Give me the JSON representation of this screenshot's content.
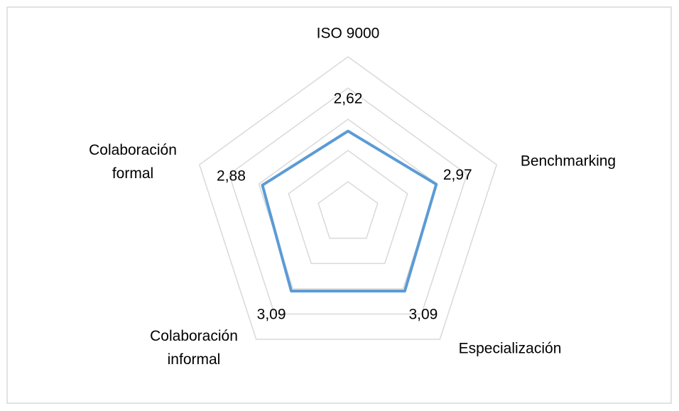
{
  "chart_data": {
    "type": "radar",
    "categories": [
      "ISO 9000",
      "Benchmarking",
      "Especialización",
      "Colaboración informal",
      "Colaboración formal"
    ],
    "series": [
      {
        "color": "#5b9bd5",
        "values": [
          2.62,
          2.97,
          3.09,
          3.09,
          2.88
        ],
        "value_labels": [
          "2,62",
          "2,97",
          "3,09",
          "3,09",
          "2,88"
        ]
      }
    ],
    "ylim": [
      0,
      5
    ],
    "yticks": [
      1,
      2,
      3,
      4,
      5
    ],
    "grid": true,
    "grid_color": "#d9d9d9"
  }
}
